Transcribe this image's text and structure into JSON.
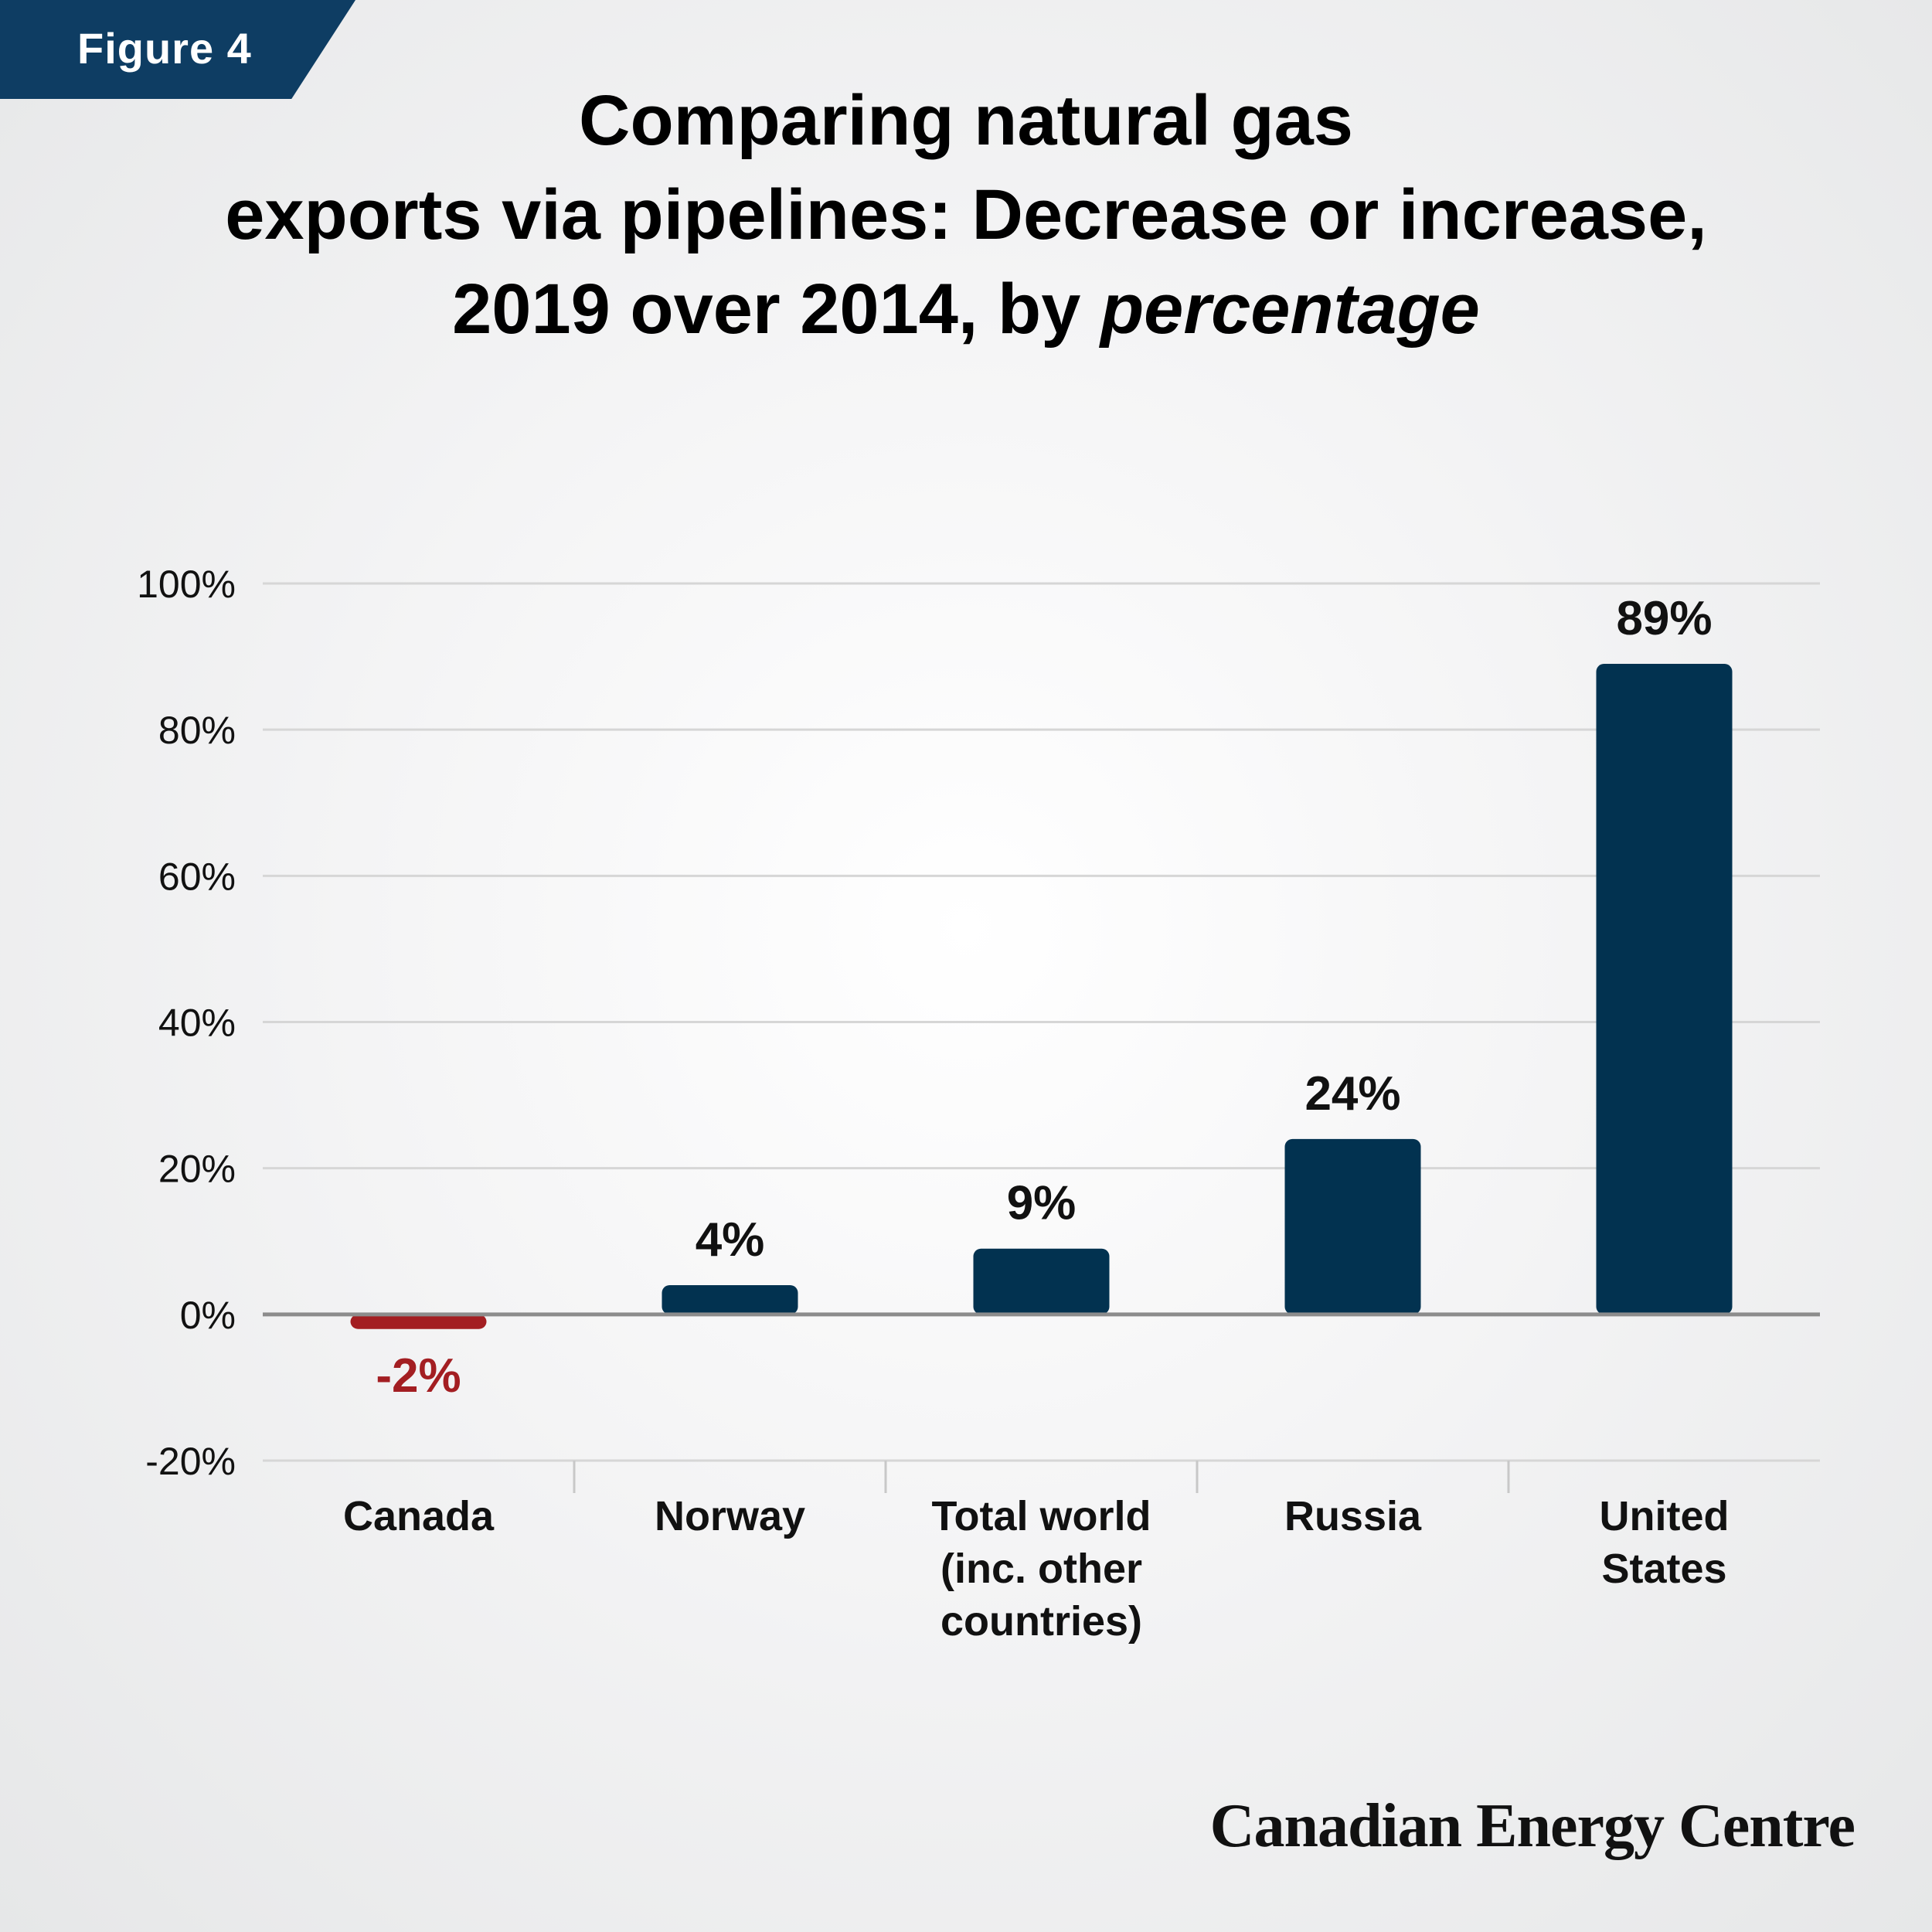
{
  "figure_label": "Figure 4",
  "title": {
    "line1": "Comparing natural gas",
    "line2": "exports via pipelines: Decrease or increase,",
    "line3_plain": "2019 over 2014, by ",
    "line3_em": "percentage"
  },
  "brand": "Canadian Energy Centre",
  "chart_data": {
    "type": "bar",
    "categories": [
      [
        "Canada"
      ],
      [
        "Norway"
      ],
      [
        "Total world",
        "(inc. other",
        "countries)"
      ],
      [
        "Russia"
      ],
      [
        "United",
        "States"
      ]
    ],
    "values": [
      -2,
      4,
      9,
      24,
      89
    ],
    "value_labels": [
      "-2%",
      "4%",
      "9%",
      "24%",
      "89%"
    ],
    "ylim": [
      -20,
      100
    ],
    "yticks": [
      100,
      80,
      60,
      40,
      20,
      0,
      -20
    ],
    "ytick_labels": [
      "100%",
      "80%",
      "60%",
      "40%",
      "20%",
      "0%",
      "-20%"
    ],
    "colors": {
      "positive": "#023250",
      "negative": "#a31e22",
      "grid": "#d6d6d6",
      "zero_line": "#8c8c8c"
    },
    "grid": true,
    "legend": "none"
  }
}
